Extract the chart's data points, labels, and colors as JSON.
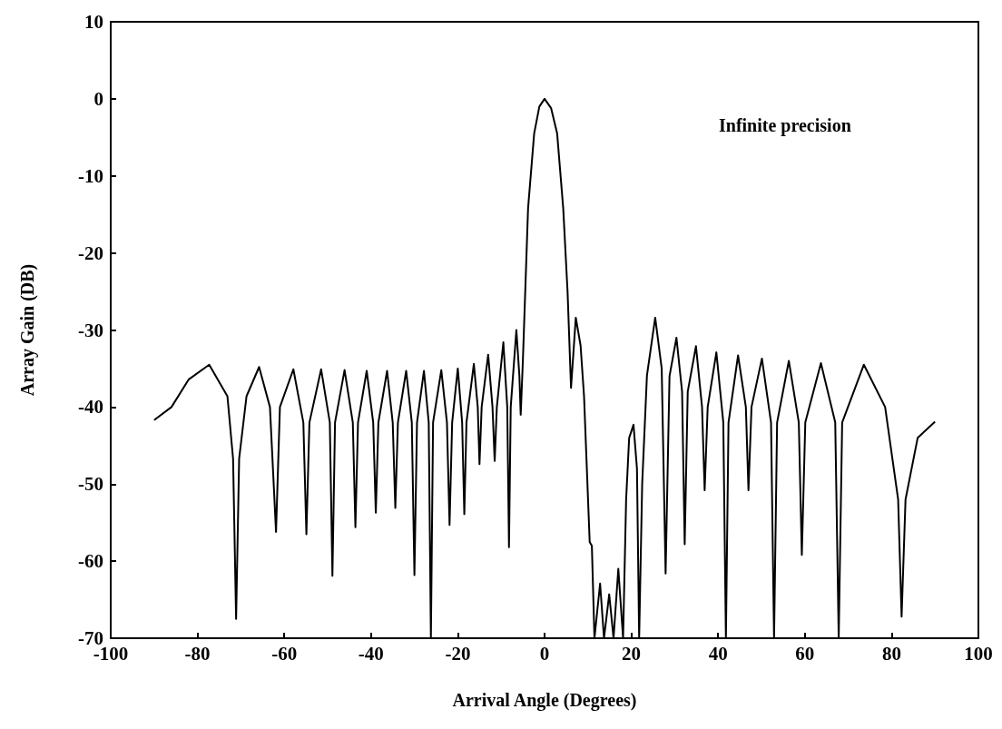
{
  "chart_data": {
    "type": "line",
    "xlabel": "Arrival Angle (Degrees)",
    "ylabel": "Array Gain (DB)",
    "annotations": [
      "Infinite precision"
    ],
    "x": [
      -90,
      -86,
      -82,
      -77.3,
      -73.1,
      -71.8,
      -71.1,
      -70.4,
      -68.7,
      -65.8,
      -63.3,
      -61.9,
      -61.0,
      -57.9,
      -55.6,
      -54.9,
      -54.2,
      -51.5,
      -49.5,
      -48.9,
      -48.3,
      -46.1,
      -44.2,
      -43.6,
      -43.0,
      -41.0,
      -39.5,
      -38.9,
      -38.3,
      -36.3,
      -35.0,
      -34.4,
      -33.8,
      -31.9,
      -30.6,
      -30.0,
      -29.4,
      -27.8,
      -26.7,
      -26.2,
      -25.7,
      -23.8,
      -22.5,
      -21.9,
      -21.3,
      -20.0,
      -19.0,
      -18.5,
      -18.0,
      -16.3,
      -15.4,
      -15.0,
      -14.5,
      -13.0,
      -12.0,
      -11.5,
      -11.0,
      -9.5,
      -8.6,
      -8.2,
      -7.8,
      -6.5,
      -5.8,
      -5.5,
      -5.0,
      -3.8,
      -2.4,
      -1.2,
      0,
      1.5,
      2.9,
      4.3,
      5.3,
      6.1,
      7.2,
      8.3,
      9.1,
      10.4,
      10.9,
      11.5,
      12.8,
      13.7,
      14.9,
      15.9,
      17.0,
      18.1,
      18.8,
      19.5,
      20.5,
      21.3,
      21.8,
      22.5,
      23.6,
      25.5,
      27.0,
      27.9,
      28.8,
      30.4,
      31.7,
      32.3,
      33.0,
      34.9,
      36.3,
      36.9,
      37.6,
      39.6,
      41.2,
      41.8,
      42.4,
      44.6,
      46.4,
      47.0,
      47.7,
      50.1,
      52.2,
      52.9,
      53.6,
      56.3,
      58.6,
      59.3,
      60.1,
      63.7,
      67.0,
      67.8,
      68.6,
      73.6,
      78.5,
      81.5,
      82.3,
      83.2,
      86,
      90
    ],
    "series": [
      {
        "color": "#000000",
        "values": [
          -41.7,
          -40,
          -36.4,
          -34.5,
          -38.6,
          -46.7,
          -67.5,
          -46.7,
          -38.6,
          -34.8,
          -40,
          -56.2,
          -40,
          -35.1,
          -42,
          -56.5,
          -42,
          -35.1,
          -42,
          -61.9,
          -42,
          -35.2,
          -42,
          -55.6,
          -42,
          -35.3,
          -42,
          -53.7,
          -42,
          -35.3,
          -42,
          -53.1,
          -42,
          -35.3,
          -42,
          -61.8,
          -42,
          -35.3,
          -42,
          -70,
          -42,
          -35.2,
          -42,
          -55.3,
          -42,
          -35.0,
          -42,
          -53.9,
          -42,
          -34.4,
          -40,
          -47.4,
          -40,
          -33.2,
          -40,
          -47.0,
          -40,
          -31.6,
          -40,
          -58.2,
          -40,
          -30.0,
          -36,
          -41.0,
          -34,
          -14.2,
          -4.5,
          -1,
          0,
          -1.2,
          -4.5,
          -14.2,
          -25,
          -37.5,
          -28.4,
          -32,
          -38.6,
          -57.5,
          -58,
          -70,
          -62.9,
          -70,
          -64.3,
          -70,
          -61,
          -70,
          -52,
          -44,
          -42.3,
          -48,
          -70,
          -50,
          -35.9,
          -28.4,
          -35,
          -61.6,
          -36,
          -31,
          -38,
          -57.8,
          -38,
          -32.1,
          -40,
          -50.8,
          -40,
          -32.9,
          -42,
          -70,
          -42,
          -33.3,
          -40,
          -50.8,
          -40,
          -33.7,
          -42,
          -70,
          -42,
          -34,
          -42,
          -59.2,
          -42,
          -34.3,
          -42,
          -70,
          -42,
          -34.5,
          -40,
          -52,
          -67.2,
          -52,
          -44,
          -41.9
        ]
      }
    ],
    "xlim": [
      -100,
      100
    ],
    "xticks": [
      -100,
      -80,
      -60,
      -40,
      -20,
      0,
      20,
      40,
      60,
      80,
      100
    ],
    "ylim": [
      -70,
      10
    ],
    "yticks": [
      -70,
      -60,
      -50,
      -40,
      -30,
      -20,
      -10,
      0,
      10
    ],
    "marker": "none",
    "line_style": "solid"
  }
}
